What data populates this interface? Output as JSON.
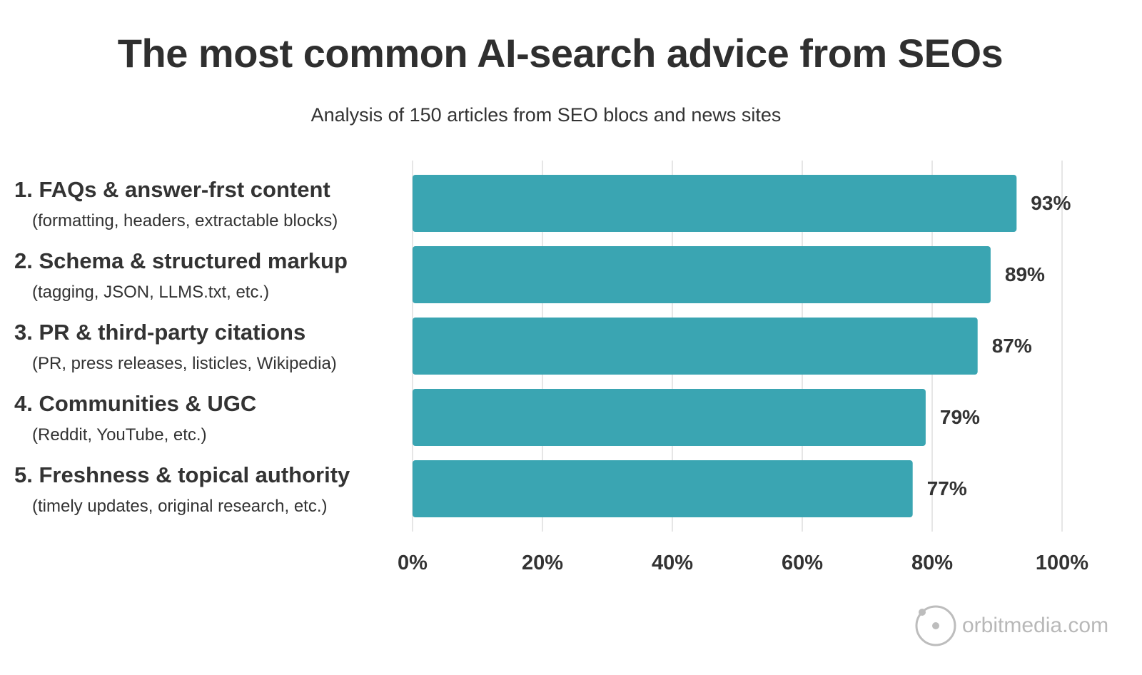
{
  "chart_data": {
    "type": "bar",
    "orientation": "horizontal",
    "title": "The most common AI-search advice from SEOs",
    "subtitle": "Analysis of 150 articles from SEO blocs and news sites",
    "categories": [
      {
        "label": "1. FAQs & answer-frst content",
        "sublabel": "(formatting, headers, extractable blocks)"
      },
      {
        "label": "2. Schema & structured markup",
        "sublabel": "(tagging, JSON, LLMS.txt, etc.)"
      },
      {
        "label": "3. PR & third-party citations",
        "sublabel": "(PR, press releases, listicles, Wikipedia)"
      },
      {
        "label": "4. Communities & UGC",
        "sublabel": "(Reddit, YouTube, etc.)"
      },
      {
        "label": "5. Freshness & topical authority",
        "sublabel": "(timely updates, original research, etc.)"
      }
    ],
    "values": [
      93,
      89,
      87,
      79,
      77
    ],
    "data_labels": [
      "93%",
      "89%",
      "87%",
      "79%",
      "77%"
    ],
    "xlim": [
      0,
      100
    ],
    "x_ticks": [
      "0%",
      "20%",
      "40%",
      "60%",
      "80%",
      "100%"
    ],
    "grid": true,
    "bar_color": "#3aa5b2"
  },
  "logo": {
    "text": "orbitmedia.com"
  }
}
